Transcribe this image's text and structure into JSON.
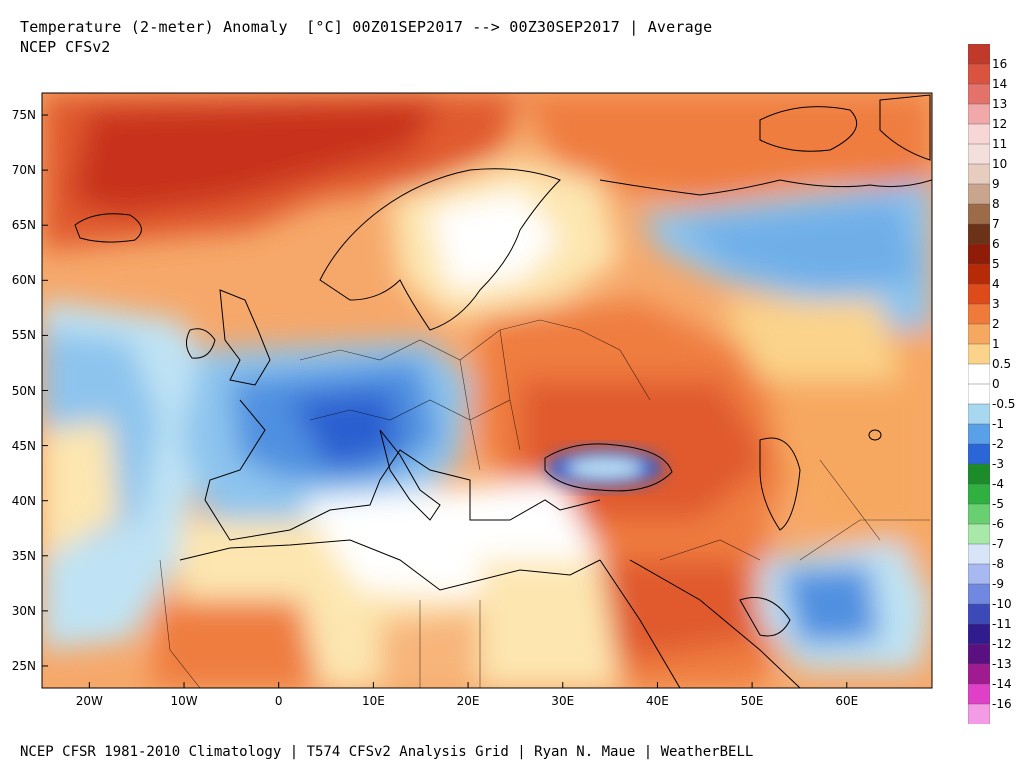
{
  "header": {
    "title": "Temperature (2-meter) Anomaly  [°C] 00Z01SEP2017 --> 00Z30SEP2017 | Average",
    "subtitle": "NCEP CFSv2"
  },
  "footer": {
    "credits": "NCEP CFSR 1981-2010 Climatology | T574 CFSv2 Analysis Grid | Ryan N. Maue | WeatherBELL"
  },
  "map": {
    "lat_range": [
      23,
      77
    ],
    "lon_range": [
      -25,
      69
    ],
    "lat_ticks": [
      "75N",
      "70N",
      "65N",
      "60N",
      "55N",
      "50N",
      "45N",
      "40N",
      "35N",
      "30N",
      "25N"
    ],
    "lat_tick_values": [
      75,
      70,
      65,
      60,
      55,
      50,
      45,
      40,
      35,
      30,
      25
    ],
    "lon_ticks": [
      "20W",
      "10W",
      "0",
      "10E",
      "20E",
      "30E",
      "40E",
      "50E",
      "60E"
    ],
    "lon_tick_values": [
      -20,
      -10,
      0,
      10,
      20,
      30,
      40,
      50,
      60
    ]
  },
  "colorbar": {
    "labels": [
      "16",
      "14",
      "13",
      "12",
      "11",
      "10",
      "9",
      "8",
      "7",
      "6",
      "5",
      "4",
      "3",
      "2",
      "1",
      "0.5",
      "0",
      "-0.5",
      "-1",
      "-2",
      "-3",
      "-4",
      "-5",
      "-6",
      "-7",
      "-8",
      "-9",
      "-10",
      "-11",
      "-12",
      "-13",
      "-14",
      "-16"
    ],
    "colors": [
      "#c0392b",
      "#d9533f",
      "#e3736a",
      "#f0a8a8",
      "#f7d6d6",
      "#f3e0dc",
      "#e6cdbf",
      "#c9a58e",
      "#9c6b4a",
      "#6b3218",
      "#8e1c08",
      "#b72a08",
      "#de4a1a",
      "#f07a3a",
      "#f7a860",
      "#fbd38a",
      "#ffffff",
      "#ffffff",
      "#a8d8f0",
      "#5aa0e8",
      "#2a66d8",
      "#1c8c2a",
      "#2fb040",
      "#68d070",
      "#a8e8a8",
      "#d8e4f8",
      "#a8b8f0",
      "#7088e0",
      "#3c4ab8",
      "#301c8c",
      "#5a1080",
      "#a01a90",
      "#e040c8",
      "#f49be6"
    ]
  },
  "colors": {
    "warm_strong": "#c8301a",
    "warm_mid": "#ef7d3f",
    "warm_light": "#f7b57a",
    "warm_pale": "#fde6b0",
    "neutral": "#ffffff",
    "cool_pale": "#bfe3f4",
    "cool_light": "#8dc4ee",
    "cool_mid": "#4f90e0",
    "cool_strong": "#2a5fd0",
    "border": "#000000"
  }
}
